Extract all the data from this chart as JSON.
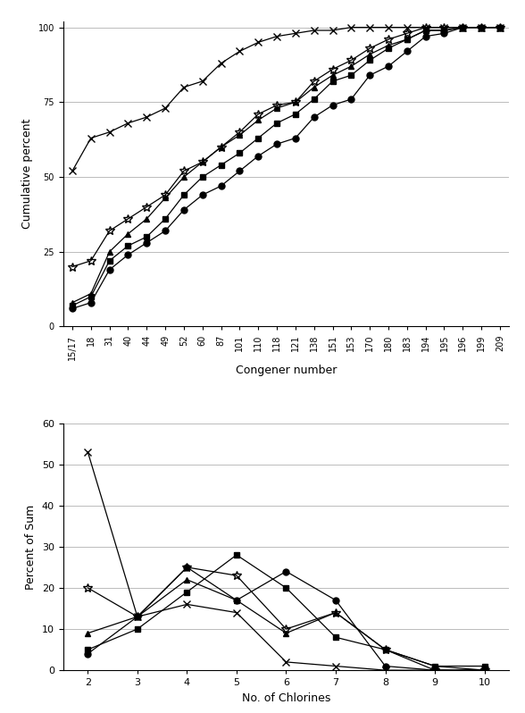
{
  "congener_labels": [
    "15/17",
    "18",
    "31",
    "40",
    "44",
    "49",
    "52",
    "60",
    "87",
    "101",
    "110",
    "118",
    "121",
    "138",
    "151",
    "153",
    "170",
    "180",
    "183",
    "194",
    "195",
    "196",
    "199",
    "209"
  ],
  "series_cumul": [
    [
      52,
      63,
      65,
      68,
      70,
      73,
      80,
      82,
      88,
      92,
      95,
      97,
      98,
      99,
      99,
      100,
      100,
      100,
      100,
      100,
      100,
      100,
      100,
      100
    ],
    [
      20,
      22,
      32,
      36,
      40,
      44,
      52,
      55,
      60,
      65,
      71,
      74,
      75,
      82,
      86,
      89,
      93,
      96,
      98,
      100,
      100,
      100,
      100,
      100
    ],
    [
      8,
      11,
      25,
      31,
      36,
      43,
      50,
      55,
      60,
      64,
      69,
      73,
      75,
      80,
      84,
      87,
      91,
      94,
      96,
      99,
      99,
      100,
      100,
      100
    ],
    [
      7,
      10,
      22,
      27,
      30,
      36,
      44,
      50,
      54,
      58,
      63,
      68,
      71,
      76,
      82,
      84,
      89,
      93,
      96,
      99,
      99,
      100,
      100,
      100
    ],
    [
      6,
      8,
      19,
      24,
      28,
      32,
      39,
      44,
      47,
      52,
      57,
      61,
      63,
      70,
      74,
      76,
      84,
      87,
      92,
      97,
      98,
      100,
      100,
      100
    ]
  ],
  "series_chlor": [
    [
      53,
      13,
      16,
      14,
      2,
      1,
      0,
      0,
      0
    ],
    [
      20,
      13,
      25,
      23,
      10,
      14,
      5,
      0,
      0
    ],
    [
      9,
      13,
      22,
      17,
      9,
      14,
      5,
      1,
      0
    ],
    [
      5,
      10,
      19,
      28,
      20,
      8,
      5,
      1,
      1
    ],
    [
      4,
      13,
      25,
      17,
      24,
      17,
      1,
      0,
      0
    ]
  ],
  "chlorine_x": [
    2,
    3,
    4,
    5,
    6,
    7,
    8,
    9,
    10
  ],
  "markers_cumul": [
    "x",
    "*",
    "^",
    "s",
    "o"
  ],
  "markers_chlor": [
    "x",
    "*",
    "^",
    "s",
    "o"
  ],
  "marker_sizes_cumul": [
    6,
    7,
    5,
    5,
    5
  ],
  "marker_sizes_chlor": [
    6,
    7,
    5,
    5,
    5
  ],
  "mfc_cumul": [
    "none",
    "none",
    "black",
    "black",
    "black"
  ],
  "mfc_chlor": [
    "none",
    "none",
    "black",
    "black",
    "black"
  ],
  "ylim1": [
    0,
    100
  ],
  "yticks1": [
    0,
    25,
    50,
    75,
    100
  ],
  "ylim2": [
    0,
    60
  ],
  "yticks2": [
    0,
    10,
    20,
    30,
    40,
    50,
    60
  ],
  "ylabel1": "Cumulative percent",
  "ylabel2": "Percent of Sum",
  "xlabel1": "Congener number",
  "xlabel2": "No. of Chlorines",
  "linewidth": 0.9,
  "grid_color": "#bbbbbb",
  "bg_color": "#ffffff"
}
